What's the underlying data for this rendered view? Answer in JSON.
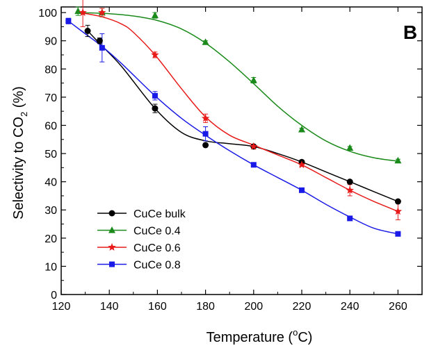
{
  "chart_data": {
    "type": "scatter",
    "panel_label": "B",
    "xlabel": "Temperature (",
    "xlabel_sup": "o",
    "xlabel_tail": "C)",
    "ylabel": "Selectivity to CO",
    "ylabel_sub": "2",
    "ylabel_tail": " (%)",
    "xlim": [
      120,
      270
    ],
    "ylim": [
      0,
      102
    ],
    "xticks": [
      120,
      140,
      160,
      180,
      200,
      220,
      240,
      260
    ],
    "yticks": [
      0,
      10,
      20,
      30,
      40,
      50,
      60,
      70,
      80,
      90,
      100
    ],
    "legend_position": "bottom-left",
    "series": [
      {
        "name": "CuCe bulk",
        "color": "#000000",
        "marker": "circle",
        "x": [
          131,
          136,
          159,
          180,
          200,
          220,
          240,
          260
        ],
        "y": [
          93.5,
          90,
          66,
          53,
          52.5,
          47,
          40,
          33
        ],
        "err": [
          2,
          1,
          1.5,
          0.5,
          0.5,
          0.5,
          0.5,
          0.5
        ],
        "fit_x": [
          131,
          136,
          145,
          159,
          170,
          180,
          190,
          200,
          210,
          220,
          230,
          240,
          250,
          260
        ],
        "fit_y": [
          93.5,
          89,
          81,
          66,
          57.5,
          54.5,
          53.5,
          52.5,
          50,
          47,
          43.5,
          40,
          36.5,
          33
        ]
      },
      {
        "name": "CuCe 0.4",
        "color": "#1a8a1a",
        "marker": "triangle",
        "x": [
          127,
          137,
          159,
          180,
          200,
          220,
          240,
          260
        ],
        "y": [
          100.5,
          100,
          99,
          89.5,
          76,
          58.5,
          52,
          47.5
        ],
        "err": [
          1.5,
          1.5,
          1,
          0.5,
          1,
          0.5,
          0.5,
          0.5
        ],
        "fit_x": [
          127,
          140,
          150,
          160,
          170,
          180,
          190,
          200,
          210,
          220,
          230,
          240,
          250,
          260
        ],
        "fit_y": [
          100,
          99.6,
          98.8,
          97.2,
          94.2,
          89.2,
          82.5,
          74.8,
          66.8,
          60,
          54.5,
          50.8,
          48.5,
          47.3
        ]
      },
      {
        "name": "CuCe 0.6",
        "color": "#e81a1a",
        "marker": "star",
        "x": [
          129,
          137,
          159,
          180,
          200,
          220,
          240,
          260
        ],
        "y": [
          100,
          100,
          85,
          62.5,
          52.5,
          46,
          37,
          29.5
        ],
        "err": [
          5,
          1.5,
          1,
          1.5,
          0.5,
          0.5,
          2,
          3
        ],
        "fit_x": [
          129,
          137,
          145,
          150,
          159,
          170,
          180,
          190,
          200,
          210,
          220,
          230,
          240,
          250,
          260
        ],
        "fit_y": [
          99.8,
          98.5,
          96,
          93,
          85,
          73,
          63,
          56.5,
          53,
          49.5,
          46,
          41.5,
          37,
          33,
          29.5
        ]
      },
      {
        "name": "CuCe 0.8",
        "color": "#1a1ae8",
        "marker": "square",
        "x": [
          123,
          137,
          159,
          180,
          200,
          220,
          240,
          260
        ],
        "y": [
          97,
          87.5,
          70.5,
          57,
          46,
          37,
          27,
          21.5
        ],
        "err": [
          1,
          5,
          1.5,
          2.5,
          0.5,
          0.5,
          0.5,
          0.5
        ],
        "fit_x": [
          123,
          130,
          137,
          145,
          159,
          170,
          180,
          190,
          200,
          210,
          220,
          230,
          240,
          250,
          260
        ],
        "fit_y": [
          97,
          92.5,
          88,
          82,
          70.5,
          62.5,
          56.5,
          51,
          46,
          41.5,
          37,
          32,
          27.5,
          23.5,
          21.5
        ]
      }
    ]
  }
}
